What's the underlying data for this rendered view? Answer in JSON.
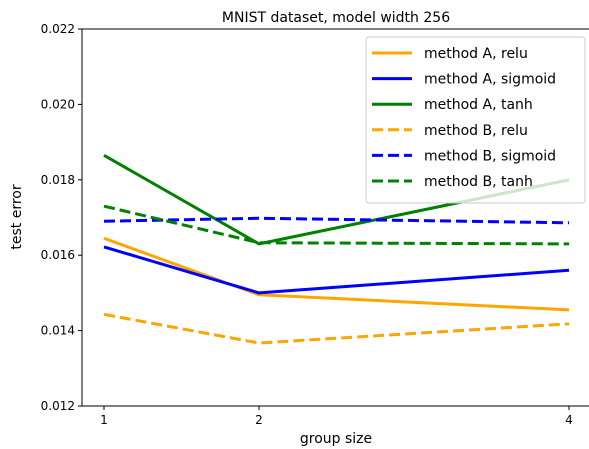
{
  "chart_data": {
    "type": "line",
    "title": "MNIST dataset, model width 256",
    "xlabel": "group size",
    "ylabel": "test error",
    "x": [
      1,
      2,
      4
    ],
    "x_ticks": [
      "1",
      "2",
      "4"
    ],
    "ylim": [
      0.012,
      0.022
    ],
    "y_ticks": [
      "0.012",
      "0.014",
      "0.016",
      "0.018",
      "0.020",
      "0.022"
    ],
    "grid": false,
    "legend_position": "top-right",
    "series": [
      {
        "name": "method A, relu",
        "color": "#FFA500",
        "dash": "solid",
        "values": [
          0.01645,
          0.01495,
          0.01455
        ]
      },
      {
        "name": "method A, sigmoid",
        "color": "#0000FF",
        "dash": "solid",
        "values": [
          0.01622,
          0.015,
          0.0156
        ]
      },
      {
        "name": "method A, tanh",
        "color": "#008000",
        "dash": "solid",
        "values": [
          0.01865,
          0.0163,
          0.018
        ]
      },
      {
        "name": "method B, relu",
        "color": "#FFA500",
        "dash": "dashed",
        "values": [
          0.01443,
          0.01367,
          0.01418
        ]
      },
      {
        "name": "method B, sigmoid",
        "color": "#0000FF",
        "dash": "dashed",
        "values": [
          0.0169,
          0.01698,
          0.01686
        ]
      },
      {
        "name": "method B, tanh",
        "color": "#008000",
        "dash": "dashed",
        "values": [
          0.0173,
          0.01633,
          0.0163
        ]
      }
    ]
  }
}
